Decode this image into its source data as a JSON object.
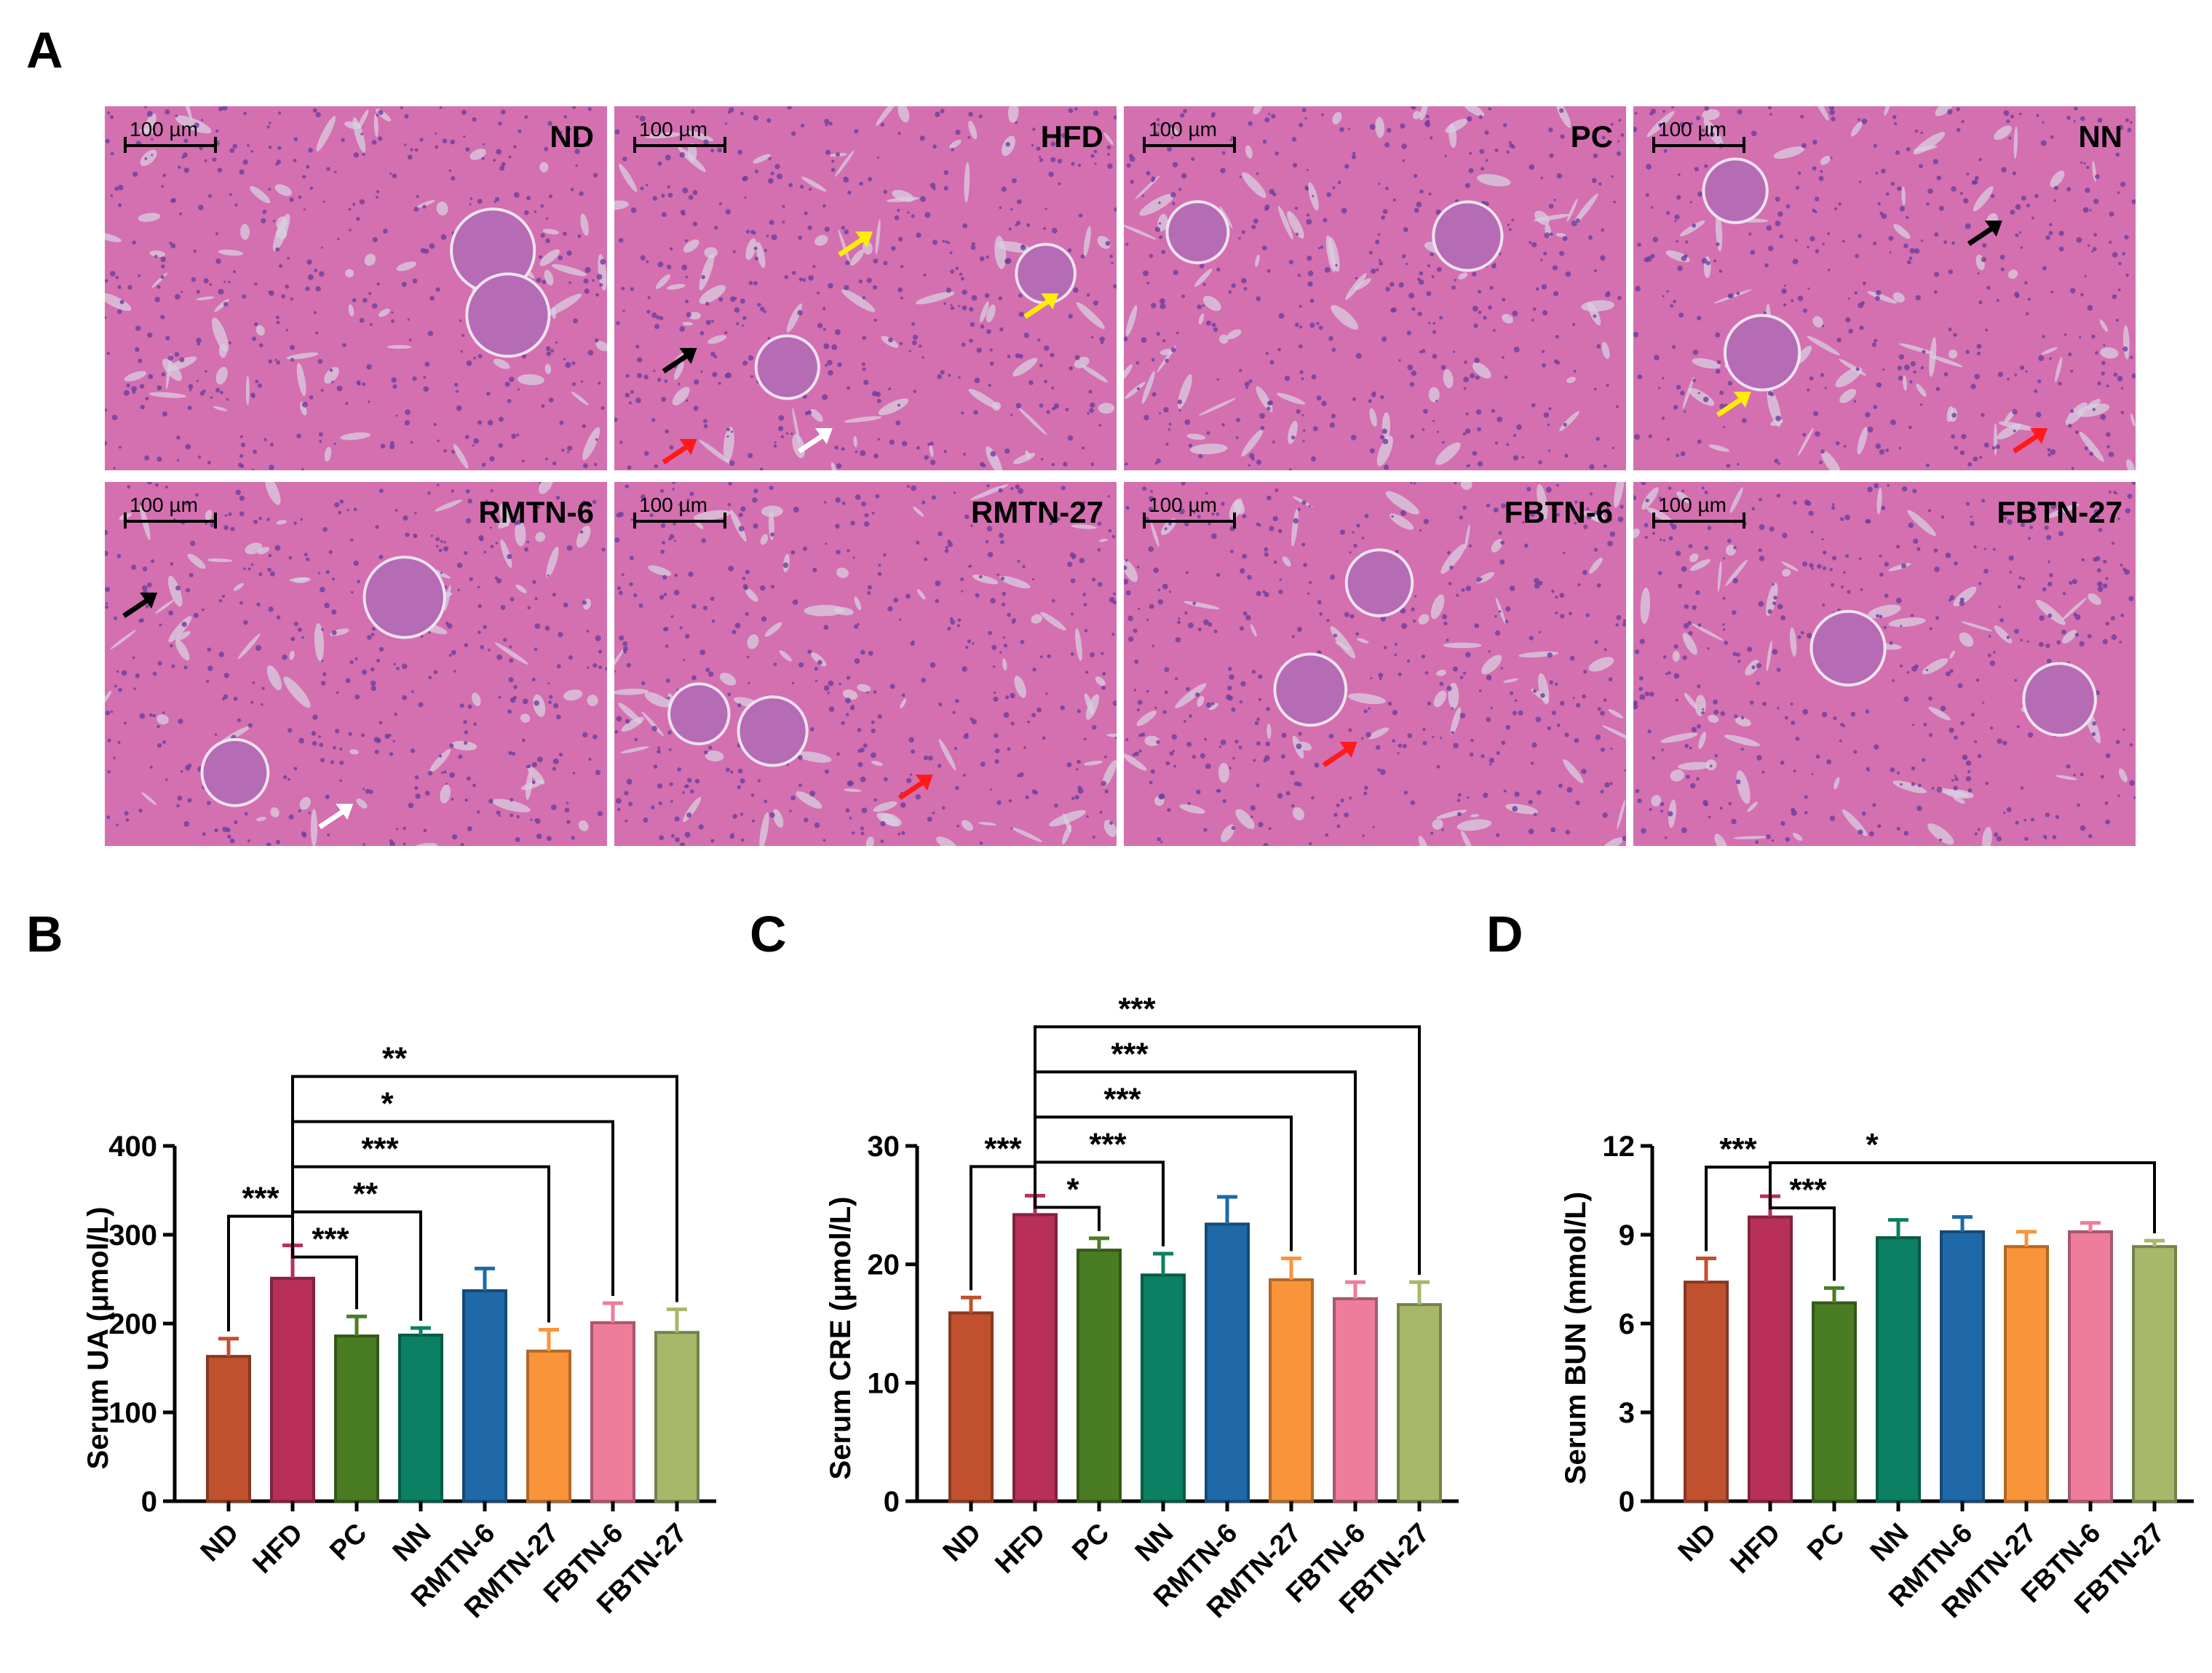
{
  "panel_letters": {
    "a": "A",
    "b": "B",
    "c": "C",
    "d": "D"
  },
  "micrographs": {
    "scale_label": "100 µm",
    "tiles": [
      {
        "label": "ND",
        "arrows": []
      },
      {
        "label": "HFD",
        "arrows": [
          {
            "color": "#ffee00",
            "at": [
              0.5,
              0.36
            ]
          },
          {
            "color": "#ffee00",
            "at": [
              0.87,
              0.53
            ]
          },
          {
            "color": "#000000",
            "at": [
              0.15,
              0.68
            ]
          },
          {
            "color": "#ff1a1a",
            "at": [
              0.15,
              0.93
            ]
          },
          {
            "color": "#ffffff",
            "at": [
              0.42,
              0.9
            ]
          }
        ]
      },
      {
        "label": "PC",
        "arrows": []
      },
      {
        "label": "NN",
        "arrows": [
          {
            "color": "#000000",
            "at": [
              0.72,
              0.33
            ]
          },
          {
            "color": "#ffee00",
            "at": [
              0.22,
              0.8
            ]
          },
          {
            "color": "#ff1a1a",
            "at": [
              0.81,
              0.9
            ]
          }
        ]
      },
      {
        "label": "RMTN-6",
        "arrows": [
          {
            "color": "#000000",
            "at": [
              0.09,
              0.32
            ]
          },
          {
            "color": "#ffffff",
            "at": [
              0.48,
              0.9
            ]
          }
        ]
      },
      {
        "label": "RMTN-27",
        "arrows": [
          {
            "color": "#ff1a1a",
            "at": [
              0.62,
              0.82
            ]
          }
        ]
      },
      {
        "label": "FBTN-6",
        "arrows": [
          {
            "color": "#ff1a1a",
            "at": [
              0.45,
              0.73
            ]
          }
        ]
      },
      {
        "label": "FBTN-27",
        "arrows": []
      }
    ]
  },
  "colors": {
    "ND": "#c0502e",
    "HFD": "#b8305a",
    "PC": "#4a7c23",
    "NN": "#0b8063",
    "RMTN-6": "#1f69a8",
    "RMTN-27": "#fa943a",
    "FBTN-6": "#ef7c9a",
    "FBTN-27": "#a7b86a"
  },
  "chart_data": [
    {
      "type": "bar",
      "panel": "B",
      "categories": [
        "ND",
        "HFD",
        "PC",
        "NN",
        "RMTN-6",
        "RMTN-27",
        "FBTN-6",
        "FBTN-27"
      ],
      "values": [
        163,
        251,
        186,
        187,
        237,
        169,
        201,
        190
      ],
      "errors": [
        20,
        37,
        22,
        8,
        25,
        24,
        22,
        26
      ],
      "ylabel": "Serum UA (μmol/L)",
      "ylim": [
        0,
        400
      ],
      "yticks": [
        0,
        100,
        200,
        300,
        400
      ],
      "brackets": [
        {
          "from": 0,
          "to": 1,
          "label": "***"
        },
        {
          "from": 1,
          "to": 2,
          "label": "***"
        },
        {
          "from": 1,
          "to": 3,
          "label": "**"
        },
        {
          "from": 1,
          "to": 5,
          "label": "***"
        },
        {
          "from": 1,
          "to": 6,
          "label": "*"
        },
        {
          "from": 1,
          "to": 7,
          "label": "**"
        }
      ]
    },
    {
      "type": "bar",
      "panel": "C",
      "categories": [
        "ND",
        "HFD",
        "PC",
        "NN",
        "RMTN-6",
        "RMTN-27",
        "FBTN-6",
        "FBTN-27"
      ],
      "values": [
        15.9,
        24.2,
        21.2,
        19.1,
        23.4,
        18.7,
        17.1,
        16.6
      ],
      "errors": [
        1.3,
        1.6,
        1.0,
        1.8,
        2.3,
        1.8,
        1.4,
        1.9
      ],
      "ylabel": "Serum CRE (μmol/L)",
      "ylim": [
        0,
        30
      ],
      "yticks": [
        0,
        10,
        20,
        30
      ],
      "brackets": [
        {
          "from": 0,
          "to": 1,
          "label": "***"
        },
        {
          "from": 1,
          "to": 2,
          "label": "*"
        },
        {
          "from": 1,
          "to": 3,
          "label": "***"
        },
        {
          "from": 1,
          "to": 5,
          "label": "***"
        },
        {
          "from": 1,
          "to": 6,
          "label": "***"
        },
        {
          "from": 1,
          "to": 7,
          "label": "***"
        }
      ]
    },
    {
      "type": "bar",
      "panel": "D",
      "categories": [
        "ND",
        "HFD",
        "PC",
        "NN",
        "RMTN-6",
        "RMTN-27",
        "FBTN-6",
        "FBTN-27"
      ],
      "values": [
        7.4,
        9.6,
        6.7,
        8.9,
        9.1,
        8.6,
        9.1,
        8.6
      ],
      "errors": [
        0.8,
        0.7,
        0.5,
        0.6,
        0.5,
        0.5,
        0.3,
        0.2
      ],
      "ylabel": "Serum BUN (mmol/L)",
      "ylim": [
        0,
        12
      ],
      "yticks": [
        0,
        3,
        6,
        9,
        12
      ],
      "brackets": [
        {
          "from": 0,
          "to": 1,
          "label": "***"
        },
        {
          "from": 1,
          "to": 2,
          "label": "***"
        },
        {
          "from": 1,
          "to": 7,
          "label": "*"
        }
      ]
    }
  ]
}
